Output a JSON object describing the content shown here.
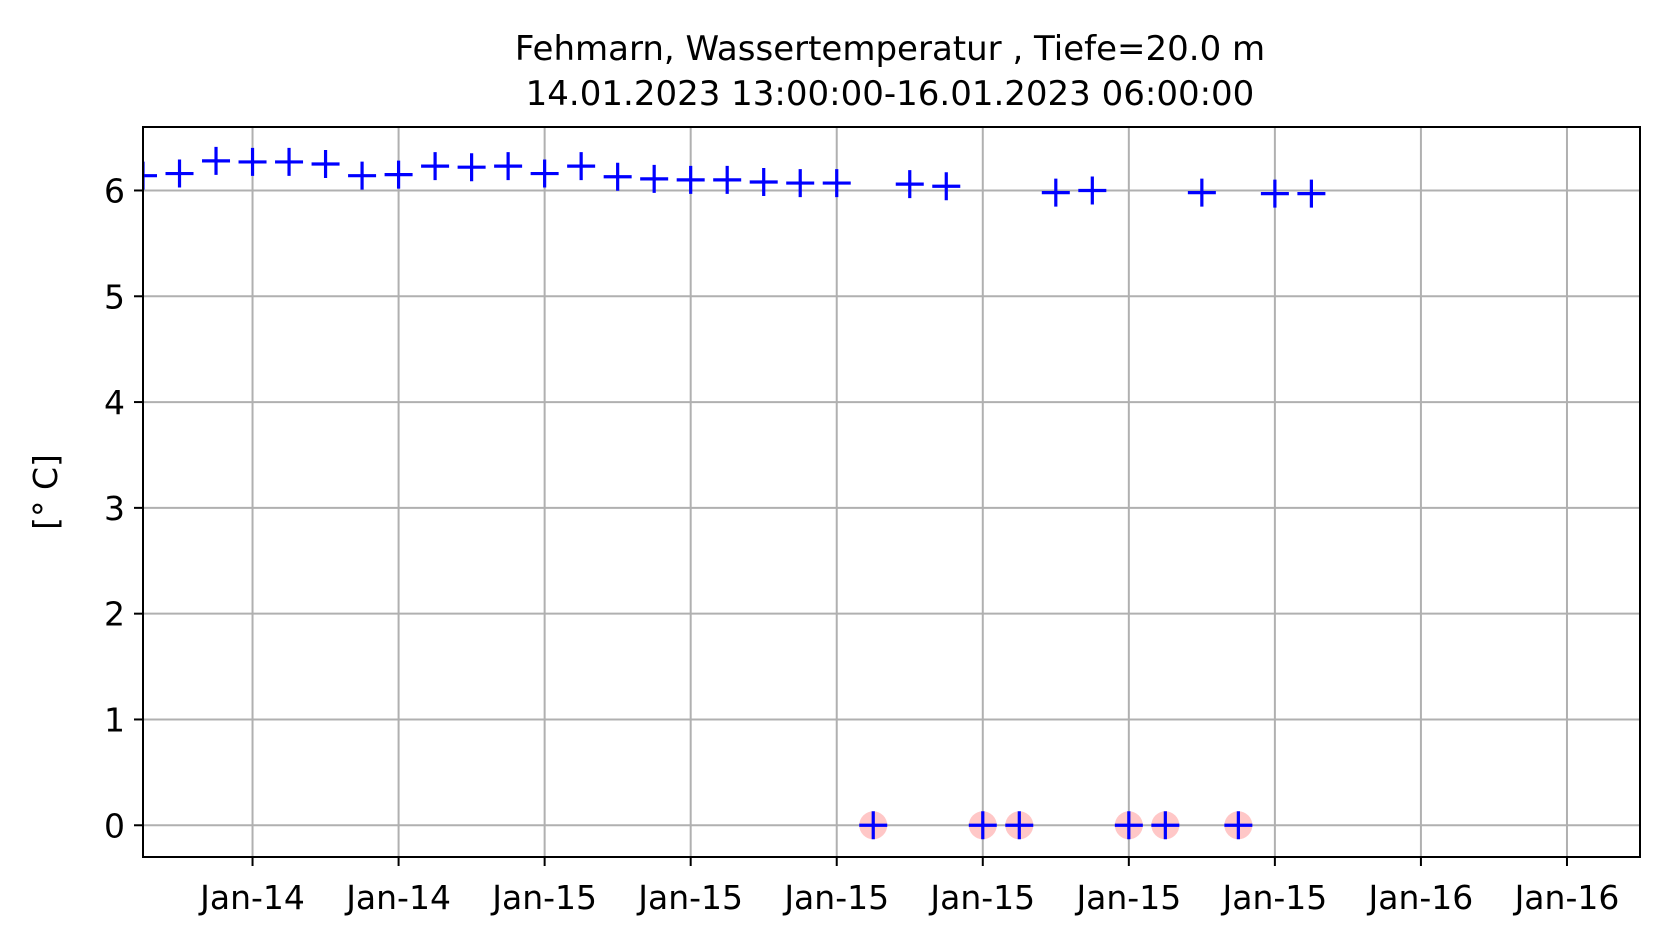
{
  "chart_data": {
    "type": "scatter",
    "title": "Fehmarn, Wassertemperatur , Tiefe=20.0 m",
    "subtitle": "14.01.2023 13:00:00-16.01.2023 06:00:00",
    "xlabel": "",
    "ylabel": "[° C]",
    "x_unit": "hours since 14.01.2023 13:00",
    "xlim": [
      0,
      41
    ],
    "ylim": [
      -0.3,
      6.6
    ],
    "yticks": [
      0,
      1,
      2,
      3,
      4,
      5,
      6
    ],
    "xticks": [
      {
        "x": 3,
        "label": "Jan-14"
      },
      {
        "x": 7,
        "label": "Jan-14"
      },
      {
        "x": 11,
        "label": "Jan-15"
      },
      {
        "x": 15,
        "label": "Jan-15"
      },
      {
        "x": 19,
        "label": "Jan-15"
      },
      {
        "x": 23,
        "label": "Jan-15"
      },
      {
        "x": 27,
        "label": "Jan-15"
      },
      {
        "x": 31,
        "label": "Jan-15"
      },
      {
        "x": 35,
        "label": "Jan-16"
      },
      {
        "x": 39,
        "label": "Jan-16"
      }
    ],
    "grid": true,
    "series_color": "#0000ff",
    "flag_color": "#ff9999",
    "series": [
      {
        "marker": "+",
        "points": [
          {
            "x": 0,
            "y": 6.14
          },
          {
            "x": 1,
            "y": 6.16
          },
          {
            "x": 2,
            "y": 6.28
          },
          {
            "x": 3,
            "y": 6.27
          },
          {
            "x": 4,
            "y": 6.27
          },
          {
            "x": 5,
            "y": 6.25
          },
          {
            "x": 6,
            "y": 6.14
          },
          {
            "x": 7,
            "y": 6.15
          },
          {
            "x": 8,
            "y": 6.23
          },
          {
            "x": 9,
            "y": 6.22
          },
          {
            "x": 10,
            "y": 6.23
          },
          {
            "x": 11,
            "y": 6.16
          },
          {
            "x": 12,
            "y": 6.23
          },
          {
            "x": 13,
            "y": 6.13
          },
          {
            "x": 14,
            "y": 6.11
          },
          {
            "x": 15,
            "y": 6.1
          },
          {
            "x": 16,
            "y": 6.1
          },
          {
            "x": 17,
            "y": 6.08
          },
          {
            "x": 18,
            "y": 6.07
          },
          {
            "x": 19,
            "y": 6.07
          },
          {
            "x": 20,
            "y": 0
          },
          {
            "x": 21,
            "y": 6.06
          },
          {
            "x": 22,
            "y": 6.04
          },
          {
            "x": 23,
            "y": 0
          },
          {
            "x": 24,
            "y": 0
          },
          {
            "x": 25,
            "y": 5.98
          },
          {
            "x": 26,
            "y": 6.0
          },
          {
            "x": 27,
            "y": 0
          },
          {
            "x": 28,
            "y": 0
          },
          {
            "x": 29,
            "y": 5.98
          },
          {
            "x": 30,
            "y": 0
          },
          {
            "x": 31,
            "y": 5.97
          },
          {
            "x": 32,
            "y": 5.97
          }
        ]
      }
    ],
    "flagged_x": [
      20,
      23,
      24,
      27,
      28,
      30
    ]
  }
}
